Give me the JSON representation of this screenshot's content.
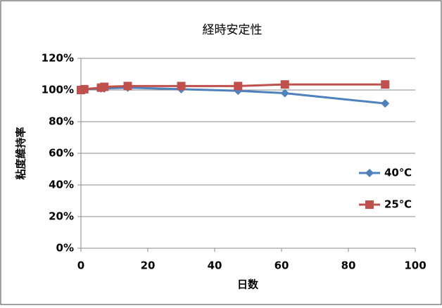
{
  "chart_data": {
    "type": "line",
    "title": "経時安定性",
    "x_label": "日数",
    "y_label": "粘度維持率",
    "x": [
      0,
      1,
      6,
      7,
      14,
      30,
      47,
      61,
      91
    ],
    "series": [
      {
        "name": "40℃",
        "color": "#4f81bd",
        "marker": "diamond",
        "values": [
          100,
          100.5,
          101,
          101,
          101.5,
          100.5,
          99.5,
          98,
          91.5
        ]
      },
      {
        "name": "25℃",
        "color": "#c0504d",
        "marker": "square",
        "values": [
          100,
          100.5,
          101.5,
          102,
          102.5,
          102.5,
          102.5,
          103.5,
          103.5
        ]
      }
    ],
    "xlim": [
      0,
      100
    ],
    "xticks": [
      0,
      20,
      40,
      60,
      80,
      100
    ],
    "ylim": [
      0,
      120
    ],
    "yticks": [
      {
        "value": 0,
        "label": "0%"
      },
      {
        "value": 20,
        "label": "20%"
      },
      {
        "value": 40,
        "label": "40%"
      },
      {
        "value": 60,
        "label": "60%"
      },
      {
        "value": 80,
        "label": "80%"
      },
      {
        "value": 100,
        "label": "100%"
      },
      {
        "value": 120,
        "label": "120%"
      }
    ],
    "grid": true,
    "legend": "right"
  }
}
